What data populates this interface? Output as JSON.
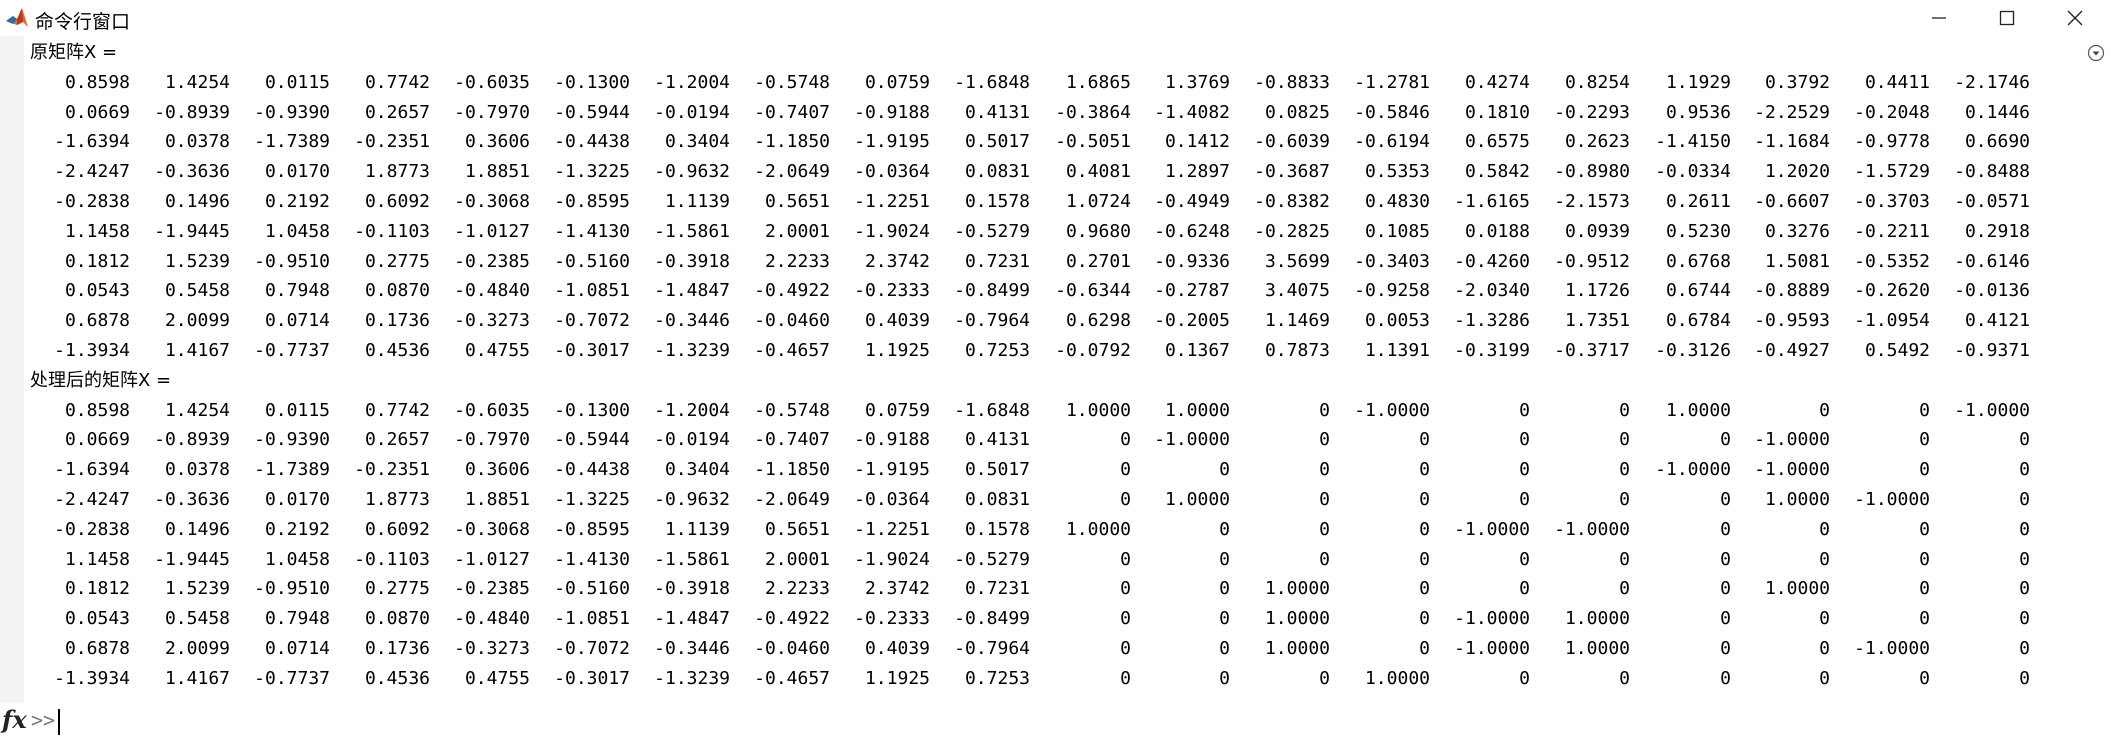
{
  "window": {
    "title": "命令行窗口",
    "icons": {
      "app": "matlab-logo-icon",
      "minimize": "minimize-icon",
      "maximize": "maximize-icon",
      "close": "close-icon",
      "options": "options-dropdown-icon",
      "function": "fx-icon"
    }
  },
  "console": {
    "matrix1_label": "原矩阵X =",
    "matrix2_label": "处理后的矩阵X =",
    "matrix1": [
      [
        "0.8598",
        "1.4254",
        "0.0115",
        "0.7742",
        "-0.6035",
        "-0.1300",
        "-1.2004",
        "-0.5748",
        "0.0759",
        "-1.6848",
        "1.6865",
        "1.3769",
        "-0.8833",
        "-1.2781",
        "0.4274",
        "0.8254",
        "1.1929",
        "0.3792",
        "0.4411",
        "-2.1746"
      ],
      [
        "0.0669",
        "-0.8939",
        "-0.9390",
        "0.2657",
        "-0.7970",
        "-0.5944",
        "-0.0194",
        "-0.7407",
        "-0.9188",
        "0.4131",
        "-0.3864",
        "-1.4082",
        "0.0825",
        "-0.5846",
        "0.1810",
        "-0.2293",
        "0.9536",
        "-2.2529",
        "-0.2048",
        "0.1446"
      ],
      [
        "-1.6394",
        "0.0378",
        "-1.7389",
        "-0.2351",
        "0.3606",
        "-0.4438",
        "0.3404",
        "-1.1850",
        "-1.9195",
        "0.5017",
        "-0.5051",
        "0.1412",
        "-0.6039",
        "-0.6194",
        "0.6575",
        "0.2623",
        "-1.4150",
        "-1.1684",
        "-0.9778",
        "0.6690"
      ],
      [
        "-2.4247",
        "-0.3636",
        "0.0170",
        "1.8773",
        "1.8851",
        "-1.3225",
        "-0.9632",
        "-2.0649",
        "-0.0364",
        "0.0831",
        "0.4081",
        "1.2897",
        "-0.3687",
        "0.5353",
        "0.5842",
        "-0.8980",
        "-0.0334",
        "1.2020",
        "-1.5729",
        "-0.8488"
      ],
      [
        "-0.2838",
        "0.1496",
        "0.2192",
        "0.6092",
        "-0.3068",
        "-0.8595",
        "1.1139",
        "0.5651",
        "-1.2251",
        "0.1578",
        "1.0724",
        "-0.4949",
        "-0.8382",
        "0.4830",
        "-1.6165",
        "-2.1573",
        "0.2611",
        "-0.6607",
        "-0.3703",
        "-0.0571"
      ],
      [
        "1.1458",
        "-1.9445",
        "1.0458",
        "-0.1103",
        "-1.0127",
        "-1.4130",
        "-1.5861",
        "2.0001",
        "-1.9024",
        "-0.5279",
        "0.9680",
        "-0.6248",
        "-0.2825",
        "0.1085",
        "0.0188",
        "0.0939",
        "0.5230",
        "0.3276",
        "-0.2211",
        "0.2918"
      ],
      [
        "0.1812",
        "1.5239",
        "-0.9510",
        "0.2775",
        "-0.2385",
        "-0.5160",
        "-0.3918",
        "2.2233",
        "2.3742",
        "0.7231",
        "0.2701",
        "-0.9336",
        "3.5699",
        "-0.3403",
        "-0.4260",
        "-0.9512",
        "0.6768",
        "1.5081",
        "-0.5352",
        "-0.6146"
      ],
      [
        "0.0543",
        "0.5458",
        "0.7948",
        "0.0870",
        "-0.4840",
        "-1.0851",
        "-1.4847",
        "-0.4922",
        "-0.2333",
        "-0.8499",
        "-0.6344",
        "-0.2787",
        "3.4075",
        "-0.9258",
        "-2.0340",
        "1.1726",
        "0.6744",
        "-0.8889",
        "-0.2620",
        "-0.0136"
      ],
      [
        "0.6878",
        "2.0099",
        "0.0714",
        "0.1736",
        "-0.3273",
        "-0.7072",
        "-0.3446",
        "-0.0460",
        "0.4039",
        "-0.7964",
        "0.6298",
        "-0.2005",
        "1.1469",
        "0.0053",
        "-1.3286",
        "1.7351",
        "0.6784",
        "-0.9593",
        "-1.0954",
        "0.4121"
      ],
      [
        "-1.3934",
        "1.4167",
        "-0.7737",
        "0.4536",
        "0.4755",
        "-0.3017",
        "-1.3239",
        "-0.4657",
        "1.1925",
        "0.7253",
        "-0.0792",
        "0.1367",
        "0.7873",
        "1.1391",
        "-0.3199",
        "-0.3717",
        "-0.3126",
        "-0.4927",
        "0.5492",
        "-0.9371"
      ]
    ],
    "matrix2": [
      [
        "0.8598",
        "1.4254",
        "0.0115",
        "0.7742",
        "-0.6035",
        "-0.1300",
        "-1.2004",
        "-0.5748",
        "0.0759",
        "-1.6848",
        "1.0000",
        "1.0000",
        "0",
        "-1.0000",
        "0",
        "0",
        "1.0000",
        "0",
        "0",
        "-1.0000"
      ],
      [
        "0.0669",
        "-0.8939",
        "-0.9390",
        "0.2657",
        "-0.7970",
        "-0.5944",
        "-0.0194",
        "-0.7407",
        "-0.9188",
        "0.4131",
        "0",
        "-1.0000",
        "0",
        "0",
        "0",
        "0",
        "0",
        "-1.0000",
        "0",
        "0"
      ],
      [
        "-1.6394",
        "0.0378",
        "-1.7389",
        "-0.2351",
        "0.3606",
        "-0.4438",
        "0.3404",
        "-1.1850",
        "-1.9195",
        "0.5017",
        "0",
        "0",
        "0",
        "0",
        "0",
        "0",
        "-1.0000",
        "-1.0000",
        "0",
        "0"
      ],
      [
        "-2.4247",
        "-0.3636",
        "0.0170",
        "1.8773",
        "1.8851",
        "-1.3225",
        "-0.9632",
        "-2.0649",
        "-0.0364",
        "0.0831",
        "0",
        "1.0000",
        "0",
        "0",
        "0",
        "0",
        "0",
        "1.0000",
        "-1.0000",
        "0"
      ],
      [
        "-0.2838",
        "0.1496",
        "0.2192",
        "0.6092",
        "-0.3068",
        "-0.8595",
        "1.1139",
        "0.5651",
        "-1.2251",
        "0.1578",
        "1.0000",
        "0",
        "0",
        "0",
        "-1.0000",
        "-1.0000",
        "0",
        "0",
        "0",
        "0"
      ],
      [
        "1.1458",
        "-1.9445",
        "1.0458",
        "-0.1103",
        "-1.0127",
        "-1.4130",
        "-1.5861",
        "2.0001",
        "-1.9024",
        "-0.5279",
        "0",
        "0",
        "0",
        "0",
        "0",
        "0",
        "0",
        "0",
        "0",
        "0"
      ],
      [
        "0.1812",
        "1.5239",
        "-0.9510",
        "0.2775",
        "-0.2385",
        "-0.5160",
        "-0.3918",
        "2.2233",
        "2.3742",
        "0.7231",
        "0",
        "0",
        "1.0000",
        "0",
        "0",
        "0",
        "0",
        "1.0000",
        "0",
        "0"
      ],
      [
        "0.0543",
        "0.5458",
        "0.7948",
        "0.0870",
        "-0.4840",
        "-1.0851",
        "-1.4847",
        "-0.4922",
        "-0.2333",
        "-0.8499",
        "0",
        "0",
        "1.0000",
        "0",
        "-1.0000",
        "1.0000",
        "0",
        "0",
        "0",
        "0"
      ],
      [
        "0.6878",
        "2.0099",
        "0.0714",
        "0.1736",
        "-0.3273",
        "-0.7072",
        "-0.3446",
        "-0.0460",
        "0.4039",
        "-0.7964",
        "0",
        "0",
        "1.0000",
        "0",
        "-1.0000",
        "1.0000",
        "0",
        "0",
        "-1.0000",
        "0"
      ],
      [
        "-1.3934",
        "1.4167",
        "-0.7737",
        "0.4536",
        "0.4755",
        "-0.3017",
        "-1.3239",
        "-0.4657",
        "1.1925",
        "0.7253",
        "0",
        "0",
        "0",
        "1.0000",
        "0",
        "0",
        "0",
        "0",
        "0",
        "0"
      ]
    ]
  },
  "prompt": {
    "symbol": ">>",
    "value": ""
  },
  "colors": {
    "gutter": "#f3f3f3",
    "background": "#ffffff",
    "prompt_symbol": "#7a7a7a",
    "text": "#000000"
  }
}
